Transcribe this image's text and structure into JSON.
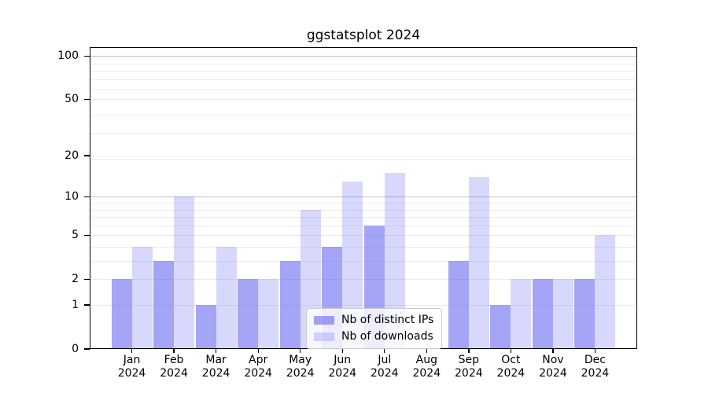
{
  "title": "ggstatsplot 2024",
  "chart_data": {
    "type": "bar",
    "title": "ggstatsplot 2024",
    "categories": [
      "Jan",
      "Feb",
      "Mar",
      "Apr",
      "May",
      "Jun",
      "Jul",
      "Aug",
      "Sep",
      "Oct",
      "Nov",
      "Dec"
    ],
    "category_year": "2024",
    "series": [
      {
        "name": "Nb of distinct IPs",
        "key": "ips",
        "color": "rgba(76,76,240,0.50)",
        "values": [
          2,
          3,
          1,
          2,
          3,
          4,
          6,
          0,
          3,
          1,
          2,
          2
        ]
      },
      {
        "name": "Nb of downloads",
        "key": "downloads",
        "color": "rgba(76,76,240,0.22)",
        "values": [
          4,
          10,
          4,
          2,
          8,
          13,
          15,
          0,
          14,
          2,
          2,
          5
        ]
      }
    ],
    "y_axis": {
      "scale": "log10(1+y)",
      "ticks": [
        0,
        1,
        2,
        5,
        10,
        20,
        50,
        100
      ],
      "max": 115
    },
    "x_axis": {
      "tick_label_format": "month + year, two lines"
    },
    "grid": "on",
    "legend": {
      "position": "bottom-center-inside",
      "entries": [
        "Nb of distinct IPs",
        "Nb of downloads"
      ]
    },
    "colors": {
      "grid_minor": "#ececec",
      "grid_major": "#c3c3c3",
      "axis": "#000000",
      "background": "#ffffff",
      "text": "#000000"
    }
  }
}
